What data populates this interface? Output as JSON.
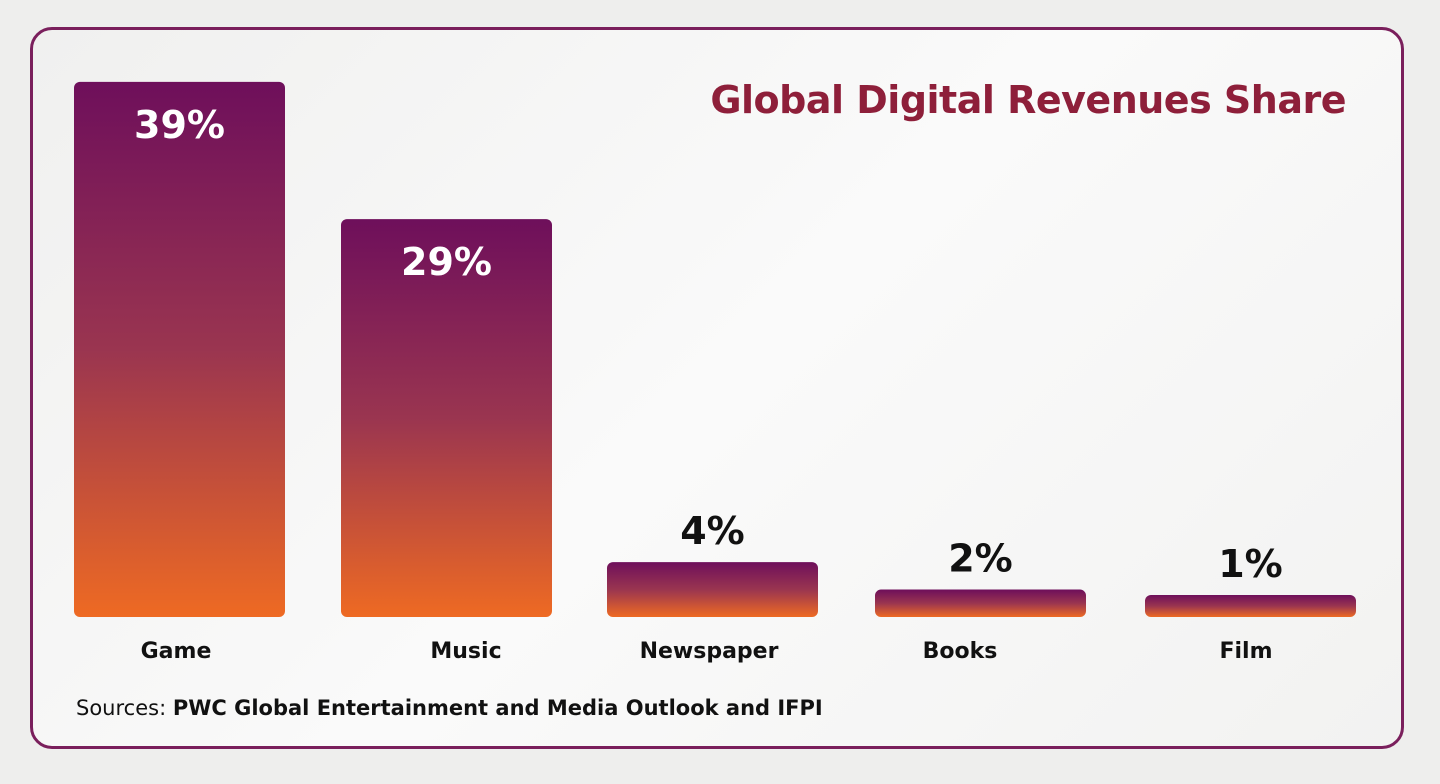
{
  "chart_data": {
    "type": "bar",
    "title": "Global Digital Revenues Share",
    "categories": [
      "Game",
      "Music",
      "Newspaper",
      "Books",
      "Film"
    ],
    "values": [
      39,
      29,
      4,
      2,
      1
    ],
    "value_labels": [
      "39%",
      "29%",
      "4%",
      "2%",
      "1%"
    ],
    "xlabel": "",
    "ylabel": "",
    "grid": false,
    "legend": "none",
    "colors": {
      "bar_top": "#6e0f5b",
      "bar_mid": "#9a3550",
      "bar_bottom": "#ee6a23",
      "title": "#8e1f3a",
      "frame": "#7a1f5c"
    }
  },
  "source": {
    "prefix": "Sources:",
    "text": "PWC Global Entertainment and Media Outlook and IFPI"
  }
}
